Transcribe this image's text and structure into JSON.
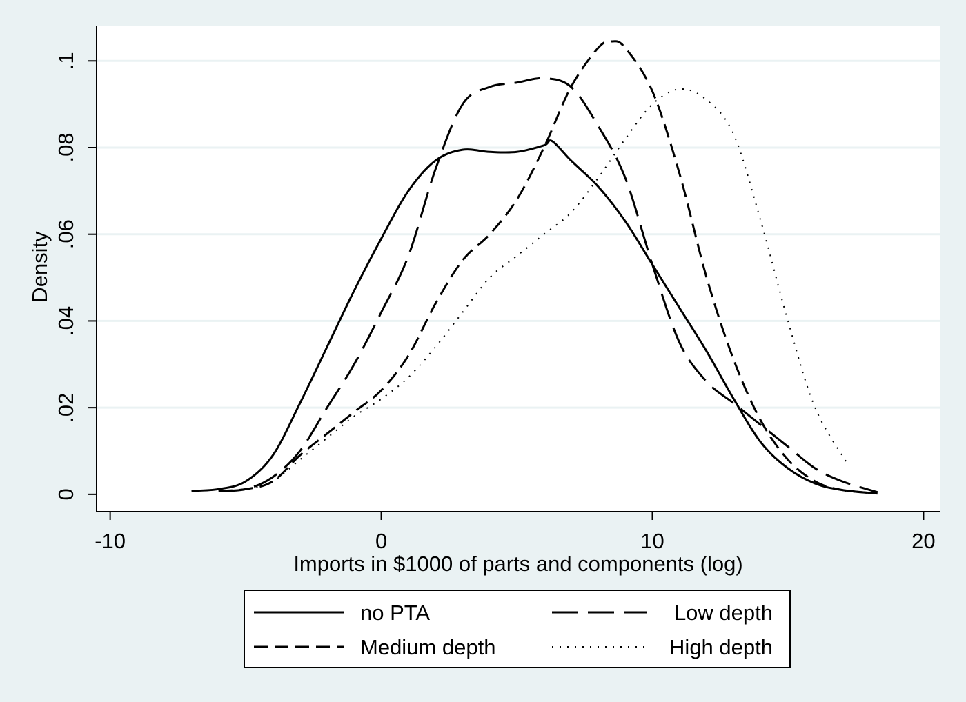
{
  "colors": {
    "background": "#eaf2f3",
    "plot_background": "#ffffff",
    "gridline": "#eaf2f3",
    "line": "#000000"
  },
  "chart_data": {
    "type": "line",
    "title": "",
    "xlabel": "Imports in $1000 of parts and components (log)",
    "ylabel": "Density",
    "xlim": [
      -10.5,
      20.6
    ],
    "ylim": [
      -0.004,
      0.108
    ],
    "x_ticks": [
      -10,
      0,
      10,
      20
    ],
    "x_tick_labels": [
      "-10",
      "0",
      "10",
      "20"
    ],
    "y_ticks": [
      0,
      0.02,
      0.04,
      0.06,
      0.08,
      0.1
    ],
    "y_tick_labels": [
      "0",
      ".02",
      ".04",
      ".06",
      ".08",
      ".1"
    ],
    "grid": true,
    "legend_position": "bottom",
    "legend_columns": 2,
    "series": [
      {
        "name": "no PTA",
        "style": "solid",
        "x": [
          -7,
          -6,
          -5,
          -4,
          -3,
          -2,
          -1,
          0,
          1,
          2,
          3,
          4,
          5,
          6,
          6.3,
          7,
          8,
          9,
          10,
          11,
          12,
          13,
          14,
          15,
          16,
          17,
          18.3
        ],
        "y": [
          0.0008,
          0.0012,
          0.003,
          0.009,
          0.021,
          0.034,
          0.047,
          0.059,
          0.07,
          0.077,
          0.0795,
          0.079,
          0.079,
          0.0805,
          0.0815,
          0.077,
          0.071,
          0.063,
          0.053,
          0.043,
          0.033,
          0.022,
          0.012,
          0.006,
          0.0025,
          0.001,
          0.0002
        ]
      },
      {
        "name": "Low depth",
        "style": "longdash",
        "x": [
          -6,
          -5,
          -4,
          -3,
          -2,
          -1,
          0,
          1,
          2,
          3,
          4,
          5,
          6,
          7,
          8,
          9,
          10,
          11,
          12,
          13,
          14,
          15,
          16,
          17,
          18.3
        ],
        "y": [
          0.0008,
          0.0012,
          0.004,
          0.01,
          0.02,
          0.03,
          0.042,
          0.055,
          0.075,
          0.09,
          0.094,
          0.095,
          0.096,
          0.094,
          0.085,
          0.073,
          0.053,
          0.035,
          0.026,
          0.021,
          0.016,
          0.011,
          0.006,
          0.003,
          0.0005
        ]
      },
      {
        "name": "Medium depth",
        "style": "shortdash",
        "x": [
          -6,
          -5,
          -4,
          -3,
          -2,
          -1,
          0,
          1,
          2,
          3,
          4,
          5,
          6,
          7,
          8,
          8.5,
          9,
          10,
          11,
          12,
          13,
          14,
          15,
          16,
          17,
          18.3
        ],
        "y": [
          0.0008,
          0.0012,
          0.003,
          0.009,
          0.014,
          0.019,
          0.024,
          0.032,
          0.044,
          0.054,
          0.06,
          0.068,
          0.08,
          0.094,
          0.103,
          0.1045,
          0.103,
          0.093,
          0.074,
          0.05,
          0.031,
          0.017,
          0.008,
          0.003,
          0.001,
          0.0002
        ]
      },
      {
        "name": "High depth",
        "style": "dotted",
        "x": [
          -6,
          -5,
          -4,
          -3,
          -2,
          -1,
          0,
          1,
          2,
          3,
          4,
          5,
          6,
          7,
          8,
          9,
          10,
          11,
          12,
          13,
          14,
          15,
          16,
          17.2
        ],
        "y": [
          0.0008,
          0.0012,
          0.003,
          0.008,
          0.013,
          0.018,
          0.022,
          0.027,
          0.034,
          0.042,
          0.05,
          0.055,
          0.06,
          0.065,
          0.073,
          0.082,
          0.09,
          0.0935,
          0.091,
          0.083,
          0.063,
          0.04,
          0.02,
          0.007
        ]
      }
    ]
  }
}
